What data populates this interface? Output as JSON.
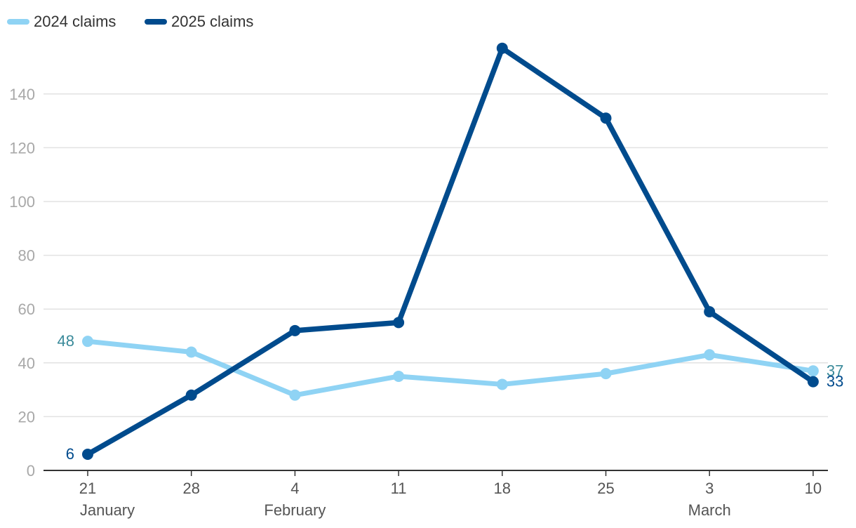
{
  "chart_data": {
    "type": "line",
    "categories": [
      "21",
      "28",
      "4",
      "11",
      "18",
      "25",
      "3",
      "10"
    ],
    "month_labels": [
      {
        "category_index": 0,
        "text": "January"
      },
      {
        "category_index": 2,
        "text": "February"
      },
      {
        "category_index": 6,
        "text": "March"
      }
    ],
    "ylim": [
      0,
      160
    ],
    "yticks": [
      0,
      20,
      40,
      60,
      80,
      100,
      120,
      140
    ],
    "grid": true,
    "legend_position": "top-left",
    "series": [
      {
        "name": "2024 claims",
        "color": "#8fd3f4",
        "label_color": "#3a8a9a",
        "values": [
          48,
          44,
          28,
          35,
          32,
          36,
          43,
          37
        ],
        "labels": [
          {
            "index": 0,
            "text": "48"
          },
          {
            "index": 7,
            "text": "37"
          }
        ]
      },
      {
        "name": "2025 claims",
        "color": "#004b8d",
        "label_color": "#004b8d",
        "values": [
          6,
          28,
          52,
          55,
          157,
          131,
          59,
          33
        ],
        "labels": [
          {
            "index": 0,
            "text": "6"
          },
          {
            "index": 7,
            "text": "33"
          }
        ]
      }
    ]
  }
}
